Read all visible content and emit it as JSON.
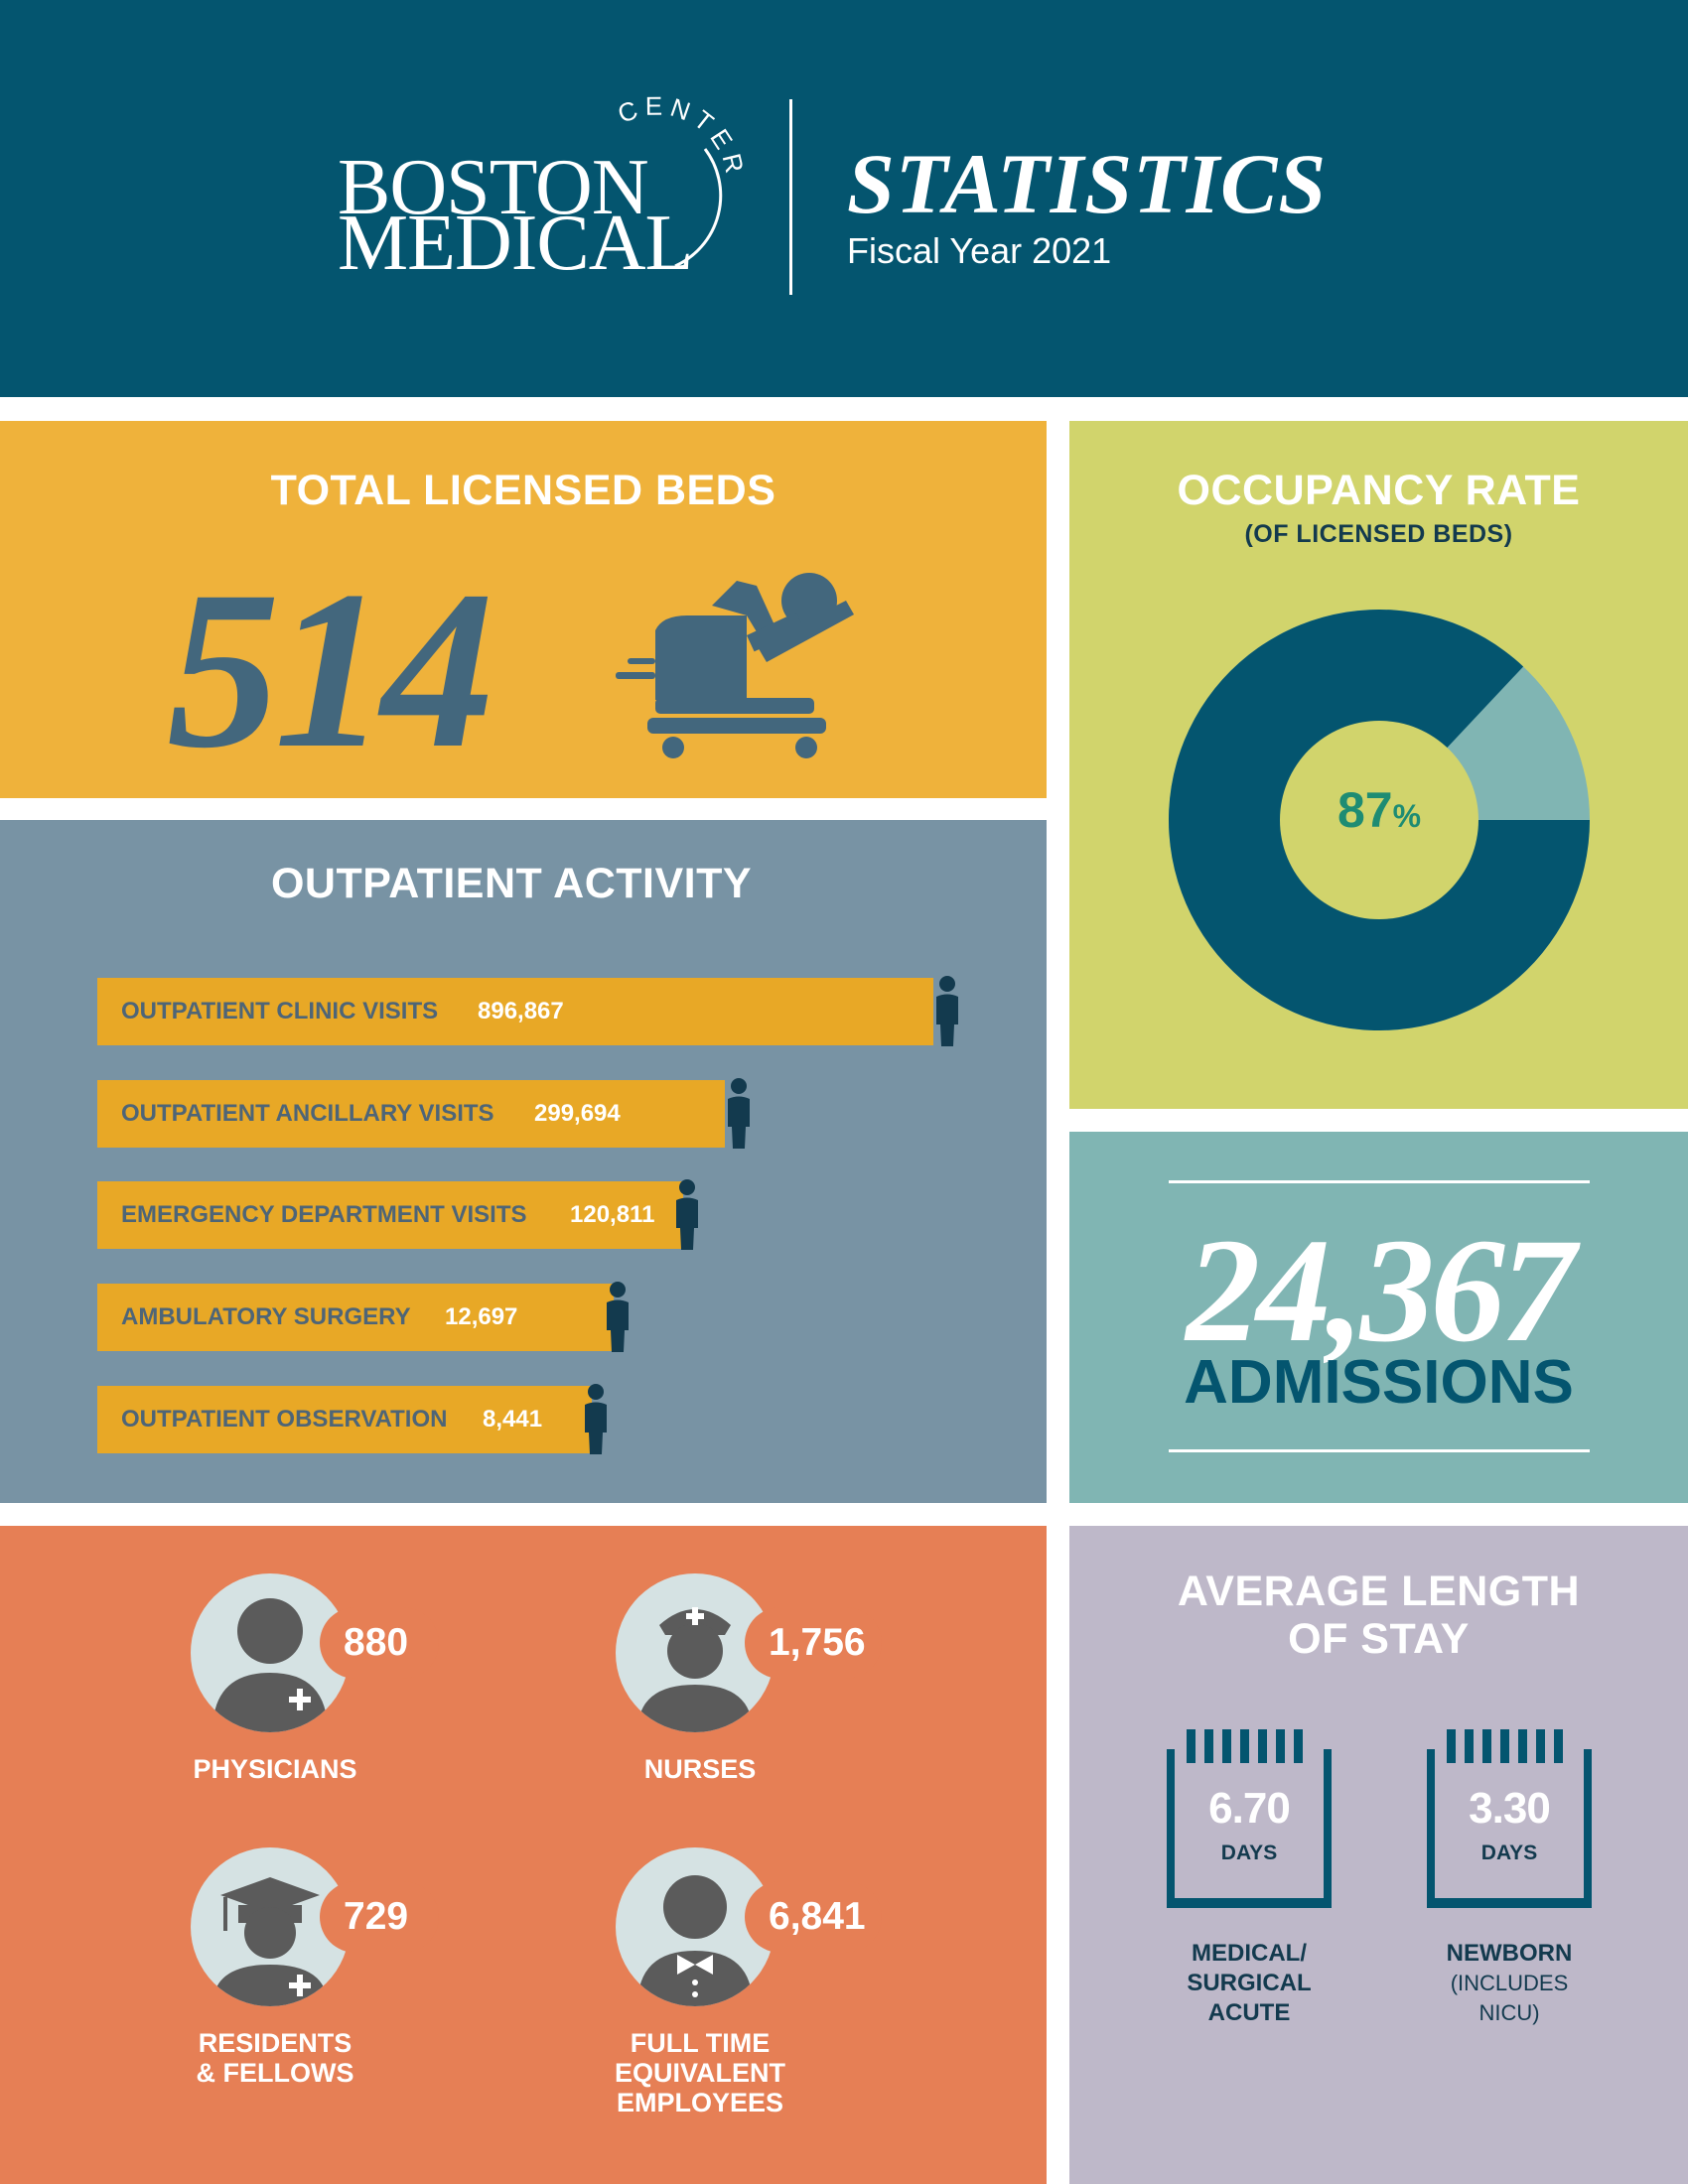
{
  "header": {
    "logo": {
      "line1": "BOSTON",
      "line2": "MEDICAL",
      "arc": "CENTER"
    },
    "title": "STATISTICS",
    "subtitle": "Fiscal Year 2021"
  },
  "beds": {
    "title": "TOTAL LICENSED BEDS",
    "value": "514",
    "icon": "hospital-bed-icon"
  },
  "occupancy": {
    "title": "OCCUPANCY RATE",
    "subtitle": "(OF LICENSED BEDS)",
    "value_number": "87",
    "value_unit": "%",
    "fraction": 0.87,
    "colors": {
      "filled": "#04556f",
      "remaining": "#80b5b3",
      "center": "#d1d46c",
      "text": "#1e8c73"
    }
  },
  "outpatient": {
    "title": "OUTPATIENT ACTIVITY",
    "items": [
      {
        "label": "OUTPATIENT CLINIC VISITS",
        "value": "896,867"
      },
      {
        "label": "OUTPATIENT ANCILLARY VISITS",
        "value": "299,694"
      },
      {
        "label": "EMERGENCY DEPARTMENT VISITS",
        "value": "120,811"
      },
      {
        "label": "AMBULATORY SURGERY",
        "value": "12,697"
      },
      {
        "label": "OUTPATIENT OBSERVATION",
        "value": "8,441"
      }
    ]
  },
  "admissions": {
    "value": "24,367",
    "label": "ADMISSIONS"
  },
  "staff": {
    "items": [
      {
        "value": "880",
        "label1": "PHYSICIANS",
        "label2": "",
        "label3": "",
        "icon": "physician-icon"
      },
      {
        "value": "1,756",
        "label1": "NURSES",
        "label2": "",
        "label3": "",
        "icon": "nurse-icon"
      },
      {
        "value": "729",
        "label1": "RESIDENTS",
        "label2": "& FELLOWS",
        "label3": "",
        "icon": "graduate-icon"
      },
      {
        "value": "6,841",
        "label1": "FULL TIME",
        "label2": "EQUIVALENT",
        "label3": "EMPLOYEES",
        "icon": "employee-icon"
      }
    ]
  },
  "alos": {
    "title1": "AVERAGE LENGTH",
    "title2": "OF STAY",
    "items": [
      {
        "value": "6.70",
        "unit": "DAYS",
        "label1": "MEDICAL/",
        "label2": "SURGICAL",
        "label3": "ACUTE"
      },
      {
        "value": "3.30",
        "unit": "DAYS",
        "label1": "NEWBORN",
        "label2": "(INCLUDES",
        "label3": "NICU)"
      }
    ]
  }
}
